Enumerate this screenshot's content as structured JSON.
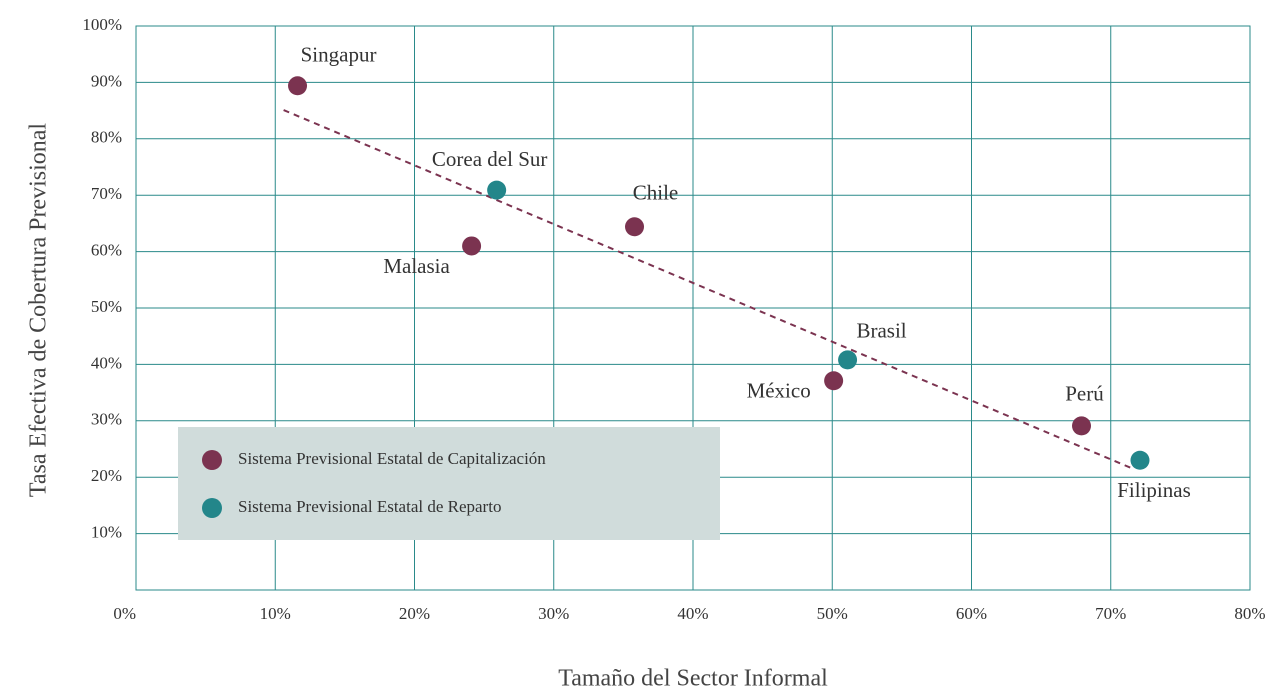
{
  "chart_data": {
    "type": "scatter",
    "xlabel": "Tamaño del Sector Informal",
    "ylabel": "Tasa Efectiva de Cobertura Previsional",
    "xlim": [
      0,
      80
    ],
    "xticks": [
      {
        "value": 0,
        "label": "0%"
      },
      {
        "value": 10,
        "label": "10%"
      },
      {
        "value": 20,
        "label": "20%"
      },
      {
        "value": 30,
        "label": "30%"
      },
      {
        "value": 40,
        "label": "40%"
      },
      {
        "value": 50,
        "label": "50%"
      },
      {
        "value": 60,
        "label": "60%"
      },
      {
        "value": 70,
        "label": "70%"
      },
      {
        "value": 80,
        "label": "80%"
      }
    ],
    "ylim": [
      0,
      100
    ],
    "yticks": [
      {
        "value": 10,
        "label": "10%"
      },
      {
        "value": 20,
        "label": "20%"
      },
      {
        "value": 30,
        "label": "30%"
      },
      {
        "value": 40,
        "label": "40%"
      },
      {
        "value": 50,
        "label": "50%"
      },
      {
        "value": 60,
        "label": "60%"
      },
      {
        "value": 70,
        "label": "70%"
      },
      {
        "value": 80,
        "label": "80%"
      },
      {
        "value": 90,
        "label": "90%"
      },
      {
        "value": 100,
        "label": "100%"
      }
    ],
    "grid": true,
    "legend": "lower left",
    "series": [
      {
        "name": "Sistema Previsional Estatal de Capitalización",
        "color": "#7b3350",
        "labels": [
          "Singapur",
          "Malasia",
          "Chile",
          "México",
          "Perú"
        ],
        "x": [
          11.6,
          24.1,
          35.8,
          50.1,
          67.9
        ],
        "values": [
          89.4,
          61.0,
          64.4,
          37.1,
          29.1
        ]
      },
      {
        "name": "Sistema Previsional Estatal de Reparto",
        "color": "#23868a",
        "labels": [
          "Corea del Sur",
          "Brasil",
          "Filipinas"
        ],
        "x": [
          25.9,
          51.1,
          72.1
        ],
        "values": [
          70.9,
          40.8,
          23.0
        ]
      }
    ],
    "trend": {
      "color": "#7b3350",
      "x": [
        10.6,
        71.5
      ],
      "values": [
        85.1,
        21.6
      ]
    }
  }
}
